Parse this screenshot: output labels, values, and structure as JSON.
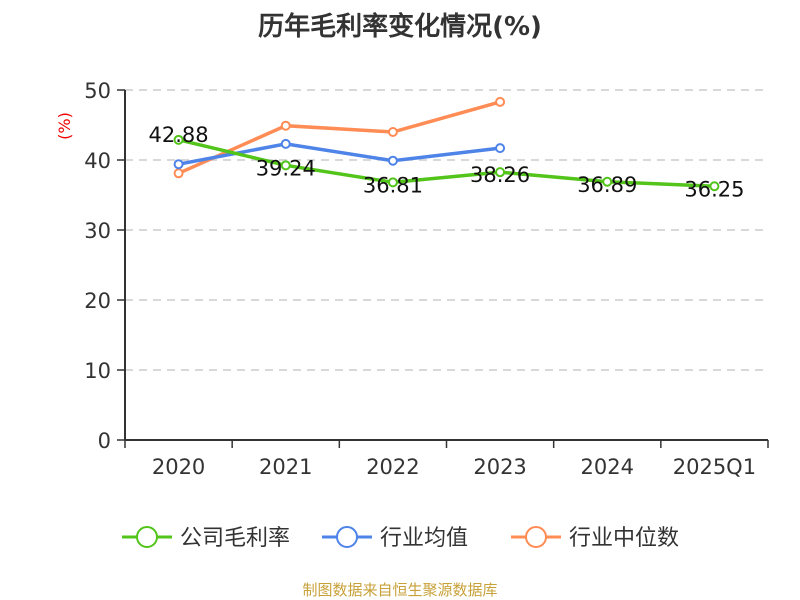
{
  "chart_data": {
    "type": "line",
    "title": "历年毛利率变化情况(%)",
    "ylabel": "(%)",
    "xlabel": "",
    "categories": [
      "2020",
      "2021",
      "2022",
      "2023",
      "2024",
      "2025Q1"
    ],
    "ylim": [
      0,
      50
    ],
    "yticks": [
      "0",
      "10",
      "20",
      "30",
      "40",
      "50"
    ],
    "grid": true,
    "legend_position": "bottom",
    "series": [
      {
        "name": "公司毛利率",
        "color": "#52c41a",
        "values": [
          42.88,
          39.24,
          36.81,
          38.26,
          36.89,
          36.25
        ],
        "labels": [
          "42.88",
          "39.24",
          "36.81",
          "38.26",
          "36.89",
          "36.25"
        ]
      },
      {
        "name": "行业均值",
        "color": "#4e83e8",
        "values": [
          39.4,
          42.3,
          39.9,
          41.7,
          null,
          null
        ]
      },
      {
        "name": "行业中位数",
        "color": "#ff8c55",
        "values": [
          38.1,
          44.9,
          44.0,
          48.3,
          null,
          null
        ]
      }
    ]
  },
  "source": "制图数据来自恒生聚源数据库"
}
